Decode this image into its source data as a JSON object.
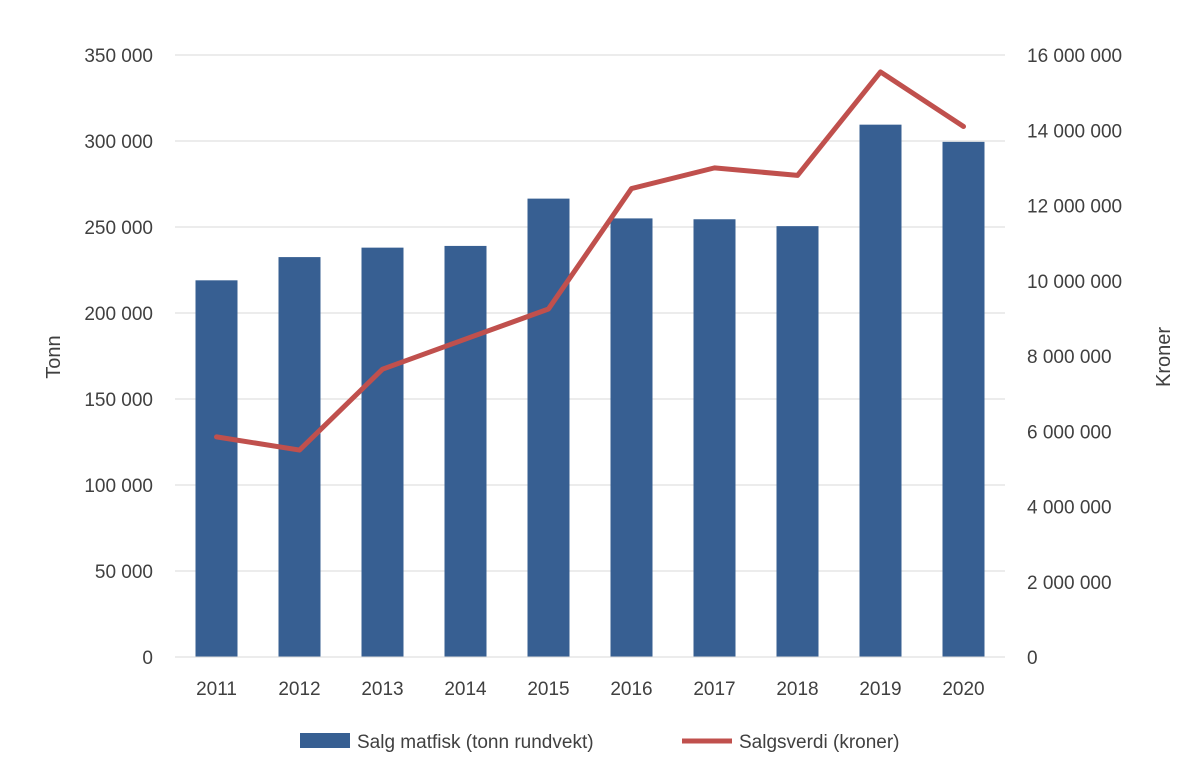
{
  "chart_data": {
    "type": "bar",
    "categories": [
      "2011",
      "2012",
      "2013",
      "2014",
      "2015",
      "2016",
      "2017",
      "2018",
      "2019",
      "2020"
    ],
    "series": [
      {
        "name": "Salg matfisk (tonn rundvekt)",
        "type": "bar",
        "axis": "left",
        "color": "#375F92",
        "values": [
          219000,
          232500,
          238000,
          239000,
          266500,
          255000,
          254500,
          250500,
          309500,
          299500
        ]
      },
      {
        "name": "Salgsverdi (kroner)",
        "type": "line",
        "axis": "right",
        "color": "#C0504D",
        "values": [
          5850000,
          5500000,
          7650000,
          8450000,
          9250000,
          12450000,
          13000000,
          12800000,
          15550000,
          14100000
        ]
      }
    ],
    "ylabel_left": "Tonn",
    "ylabel_right": "Kroner",
    "ylim_left": [
      0,
      350000
    ],
    "ylim_right": [
      0,
      16000000
    ],
    "yticks_left": [
      "0",
      "50 000",
      "100 000",
      "150 000",
      "200 000",
      "250 000",
      "300 000",
      "350 000"
    ],
    "yticks_right": [
      "0",
      "2 000 000",
      "4 000 000",
      "6 000 000",
      "8 000 000",
      "10 000 000",
      "12 000 000",
      "14 000 000",
      "16 000 000"
    ],
    "grid": true,
    "legend_position": "bottom"
  }
}
